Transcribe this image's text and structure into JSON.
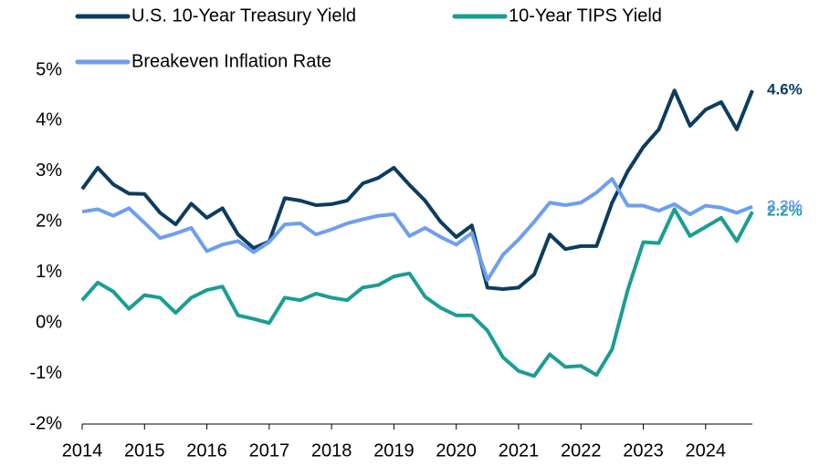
{
  "chart_data": {
    "type": "line",
    "x": [
      2014,
      2014.25,
      2014.5,
      2014.75,
      2015,
      2015.25,
      2015.5,
      2015.75,
      2016,
      2016.25,
      2016.5,
      2016.75,
      2017,
      2017.25,
      2017.5,
      2017.75,
      2018,
      2018.25,
      2018.5,
      2018.75,
      2019,
      2019.25,
      2019.5,
      2019.75,
      2020,
      2020.25,
      2020.5,
      2020.75,
      2021,
      2021.25,
      2021.5,
      2021.75,
      2022,
      2022.25,
      2022.5,
      2022.75,
      2023,
      2023.25,
      2023.5,
      2023.75,
      2024,
      2024.25,
      2024.5,
      2024.75
    ],
    "series": [
      {
        "name": "U.S. 10-Year Treasury Yield",
        "color": "#0c3d60",
        "values": [
          2.65,
          3.07,
          2.74,
          2.56,
          2.55,
          2.18,
          1.95,
          2.36,
          2.08,
          2.27,
          1.75,
          1.48,
          1.61,
          2.47,
          2.42,
          2.33,
          2.35,
          2.42,
          2.76,
          2.87,
          3.07,
          2.73,
          2.42,
          2.0,
          1.7,
          1.93,
          0.7,
          0.67,
          0.7,
          0.96,
          1.75,
          1.46,
          1.52,
          1.52,
          2.38,
          3.0,
          3.48,
          3.83,
          4.6,
          3.9,
          4.22,
          4.37,
          3.83,
          4.6
        ],
        "value_labels": [
          null,
          null,
          null,
          null,
          null,
          null,
          null,
          null,
          null,
          null,
          null,
          null,
          null,
          null,
          null,
          null,
          null,
          null,
          null,
          null,
          null,
          null,
          null,
          null,
          null,
          null,
          null,
          null,
          null,
          null,
          null,
          null,
          null,
          null,
          null,
          null,
          null,
          null,
          null,
          null,
          null,
          null,
          null,
          "4.6%"
        ]
      },
      {
        "name": "10-Year TIPS Yield",
        "color": "#1a9e93",
        "values": [
          0.45,
          0.8,
          0.62,
          0.28,
          0.55,
          0.5,
          0.2,
          0.5,
          0.65,
          0.72,
          0.15,
          0.08,
          0.0,
          0.5,
          0.45,
          0.58,
          0.5,
          0.45,
          0.7,
          0.75,
          0.92,
          0.98,
          0.52,
          0.3,
          0.15,
          0.15,
          -0.15,
          -0.68,
          -0.95,
          -1.05,
          -0.62,
          -0.87,
          -0.85,
          -1.03,
          -0.52,
          0.65,
          1.6,
          1.58,
          2.25,
          1.72,
          1.9,
          2.08,
          1.62,
          2.2
        ],
        "value_labels": [
          null,
          null,
          null,
          null,
          null,
          null,
          null,
          null,
          null,
          null,
          null,
          null,
          null,
          null,
          null,
          null,
          null,
          null,
          null,
          null,
          null,
          null,
          null,
          null,
          null,
          null,
          null,
          null,
          null,
          null,
          null,
          null,
          null,
          null,
          null,
          null,
          null,
          null,
          null,
          null,
          null,
          null,
          null,
          "2.2%"
        ]
      },
      {
        "name": "Breakeven Inflation Rate",
        "color": "#6e9ef0",
        "values": [
          2.2,
          2.25,
          2.12,
          2.27,
          1.98,
          1.68,
          1.77,
          1.88,
          1.42,
          1.55,
          1.62,
          1.4,
          1.6,
          1.95,
          1.97,
          1.75,
          1.85,
          1.97,
          2.05,
          2.12,
          2.15,
          1.72,
          1.88,
          1.7,
          1.55,
          1.78,
          0.85,
          1.35,
          1.65,
          2.0,
          2.38,
          2.33,
          2.38,
          2.58,
          2.85,
          2.32,
          2.32,
          2.22,
          2.35,
          2.15,
          2.32,
          2.28,
          2.18,
          2.3
        ],
        "value_labels": [
          null,
          null,
          null,
          null,
          null,
          null,
          null,
          null,
          null,
          null,
          null,
          null,
          null,
          null,
          null,
          null,
          null,
          null,
          null,
          null,
          null,
          null,
          null,
          null,
          null,
          null,
          null,
          null,
          null,
          null,
          null,
          null,
          null,
          null,
          null,
          null,
          null,
          null,
          null,
          null,
          null,
          null,
          null,
          "2.3%"
        ]
      }
    ],
    "xlim": [
      2014,
      2024.75
    ],
    "xticks": [
      2014,
      2015,
      2016,
      2017,
      2018,
      2019,
      2020,
      2021,
      2022,
      2023,
      2024
    ],
    "ylim": [
      -2,
      5
    ],
    "yticks": [
      {
        "value": -2,
        "label": "-2%"
      },
      {
        "value": -1,
        "label": "-1%"
      },
      {
        "value": 0,
        "label": "0%"
      },
      {
        "value": 1,
        "label": "1%"
      },
      {
        "value": 2,
        "label": "2%"
      },
      {
        "value": 3,
        "label": "3%"
      },
      {
        "value": 4,
        "label": "4%"
      },
      {
        "value": 5,
        "label": "5%"
      }
    ],
    "grid": false,
    "legend": "top"
  }
}
